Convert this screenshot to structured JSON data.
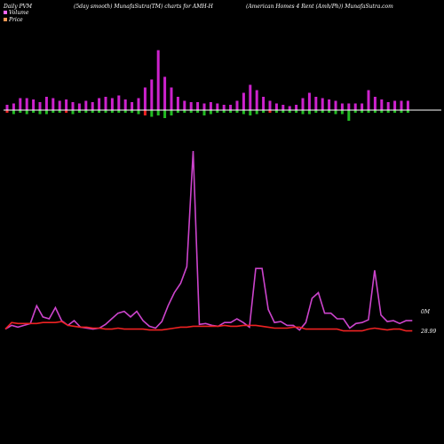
{
  "header": {
    "left": "Daily PVM",
    "center": "(5day smooth) MunafaSutra(TM) charts for AMH-H",
    "right": "(American Homes 4 Rent (Amh/Ph)) MunafaSutra.com"
  },
  "legend": [
    {
      "label": "Volume",
      "color": "#ff66ff"
    },
    {
      "label": "Price",
      "color": "#ff9955"
    }
  ],
  "colors": {
    "background": "#000000",
    "volume_up": "#cc22cc",
    "volume_down_bar": "#ee2222",
    "volume_neg": "#22bb22",
    "pvm_line": "#cc44cc",
    "price_line": "#ee2222",
    "baseline": "#ffffff"
  },
  "labels": {
    "volume_end": "0M",
    "price_end": "28.99"
  },
  "chart_data": [
    {
      "type": "bar",
      "title": "",
      "x": [
        1,
        2,
        3,
        4,
        5,
        6,
        7,
        8,
        9,
        10,
        11,
        12,
        13,
        14,
        15,
        16,
        17,
        18,
        19,
        20,
        21,
        22,
        23,
        24,
        25,
        26,
        27,
        28,
        29,
        30,
        31,
        32,
        33,
        34,
        35,
        36,
        37,
        38,
        39,
        40,
        41,
        42,
        43,
        44,
        45,
        46,
        47,
        48,
        49,
        50,
        51,
        52,
        53,
        54,
        55,
        56,
        57,
        58,
        59,
        60,
        61,
        62,
        63,
        64,
        65,
        66
      ],
      "series": [
        {
          "values": [
            0.8,
            1.0,
            1.8,
            1.8,
            1.6,
            1.2,
            2.0,
            1.8,
            1.4,
            1.6,
            1.2,
            1.0,
            1.4,
            1.2,
            1.8,
            2.0,
            1.8,
            2.2,
            1.6,
            1.2,
            1.8,
            3.4,
            4.6,
            9.0,
            5.0,
            3.4,
            2.0,
            1.4,
            1.2,
            1.2,
            1.0,
            1.2,
            1.0,
            0.8,
            0.8,
            1.4,
            2.6,
            3.8,
            3.0,
            2.0,
            1.4,
            1.0,
            0.8,
            0.6,
            0.8,
            1.8,
            2.6,
            2.0,
            1.8,
            1.6,
            1.4,
            1.0,
            1.0,
            1.0,
            1.0,
            3.0,
            2.0,
            1.6,
            1.2,
            1.4,
            1.4,
            1.4,
            0,
            0,
            0,
            0
          ]
        },
        {
          "values": [
            -0.4,
            -0.6,
            -0.4,
            -0.6,
            -0.4,
            -0.6,
            -0.6,
            -0.4,
            -0.4,
            -0.4,
            -0.6,
            -0.4,
            -0.4,
            -0.4,
            -0.4,
            -0.4,
            -0.4,
            -0.4,
            -0.4,
            -0.4,
            -0.6,
            -0.8,
            -1.0,
            -0.8,
            -1.2,
            -0.8,
            -0.4,
            -0.4,
            -0.4,
            -0.4,
            -0.8,
            -0.6,
            -0.4,
            -0.4,
            -0.4,
            -0.4,
            -0.6,
            -0.8,
            -0.6,
            -0.4,
            -0.4,
            -0.4,
            -0.4,
            -0.4,
            -0.4,
            -0.6,
            -0.6,
            -0.4,
            -0.4,
            -0.4,
            -0.6,
            -0.6,
            -1.6,
            -0.4,
            -0.4,
            -0.4,
            -0.4,
            -0.4,
            -0.4,
            -0.4,
            -0.4,
            -0.4,
            0,
            0,
            0,
            0
          ]
        }
      ]
    },
    {
      "type": "line",
      "title": "",
      "x": [
        1,
        2,
        3,
        4,
        5,
        6,
        7,
        8,
        9,
        10,
        11,
        12,
        13,
        14,
        15,
        16,
        17,
        18,
        19,
        20,
        21,
        22,
        23,
        24,
        25,
        26,
        27,
        28,
        29,
        30,
        31,
        32,
        33,
        34,
        35,
        36,
        37,
        38,
        39,
        40,
        41,
        42,
        43,
        44,
        45,
        46,
        47,
        48,
        49,
        50,
        51,
        52,
        53,
        54,
        55,
        56,
        57,
        58,
        59,
        60,
        61,
        62,
        63,
        64,
        65,
        66
      ],
      "ylim": [
        0,
        100
      ],
      "series": [
        {
          "values": [
            4.5,
            6.5,
            5.5,
            6.5,
            7.5,
            17,
            11,
            10,
            16,
            9,
            6.5,
            9,
            5.5,
            5,
            4.5,
            5,
            7,
            10,
            13,
            14,
            11,
            14,
            9,
            6,
            5,
            8.5,
            17,
            24,
            29,
            38,
            100,
            7,
            7.5,
            6.5,
            6,
            8,
            8,
            10,
            8,
            5.5,
            37,
            37,
            15,
            8,
            8.5,
            6.5,
            6.5,
            4,
            8,
            21,
            24,
            13,
            13,
            10,
            10,
            5,
            7.5,
            8,
            9.5,
            36,
            12,
            8.5,
            9,
            7.5,
            9,
            9
          ]
        },
        {
          "values": [
            4.5,
            8,
            7.5,
            7.5,
            7.5,
            7.5,
            8,
            8,
            8,
            8.5,
            6.5,
            6,
            5.5,
            5.5,
            5,
            5,
            4.5,
            4.5,
            5,
            4.5,
            4.5,
            4.5,
            4.5,
            4,
            4,
            4,
            4.5,
            5,
            5.5,
            5.5,
            6,
            6,
            6,
            6,
            6,
            6.5,
            6,
            6,
            6.5,
            6.5,
            6.5,
            6,
            5.5,
            5,
            5,
            5,
            5.5,
            5.5,
            4.5,
            4.5,
            4.5,
            4.5,
            4.5,
            4.5,
            3.5,
            3.5,
            3.5,
            3.5,
            4.5,
            5,
            4.5,
            4,
            4.5,
            4.5,
            3.5,
            3.5
          ]
        }
      ]
    }
  ]
}
